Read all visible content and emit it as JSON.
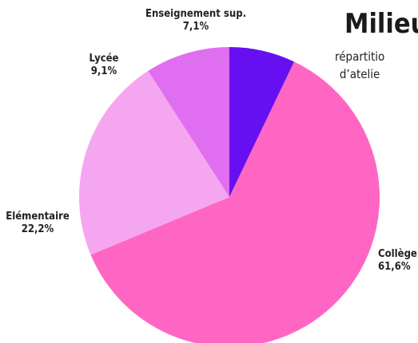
{
  "chart_data": {
    "type": "pie",
    "title": "Milieu",
    "subtitle_lines": [
      "répartitio",
      "d’atelie"
    ],
    "slices": [
      {
        "category": "Enseignement sup.",
        "value_label": "7,1%",
        "value": 7.1,
        "color": "#6610f2"
      },
      {
        "category": "Collège",
        "value_label": "61,6%",
        "value": 61.6,
        "color": "#ff66c4"
      },
      {
        "category": "Elémentaire",
        "value_label": "22,2%",
        "value": 22.2,
        "color": "#f5a6f0"
      },
      {
        "category": "Lycée",
        "value_label": "9,1%",
        "value": 9.1,
        "color": "#e06ef0"
      }
    ],
    "legend": "none"
  }
}
